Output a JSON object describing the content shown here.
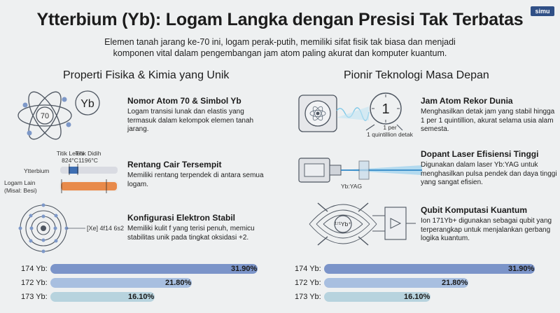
{
  "header": {
    "title": "Ytterbium (Yb): Logam Langka dengan Presisi Tak Terbatas",
    "logo": "simu",
    "subtitle": "Elemen tanah jarang ke-70 ini, logam perak-putih, memiliki sifat fisik tak biasa dan menjadi komponen vital dalam pengembangan jam atom paling akurat dan komputer kuantum."
  },
  "left": {
    "title": "Properti Fisika & Kimia yang Unik",
    "features": [
      {
        "title": "Nomor Atom 70 & Simbol Yb",
        "text": "Logam transisi lunak dan elastis yang termasuk dalam kelompok elemen tanah jarang."
      },
      {
        "title": "Rentang Cair Tersempit",
        "text": "Memiliki rentang terpendek di antara semua logam."
      },
      {
        "title": "Konfigurasi Elektron Stabil",
        "text": "Memiliki kulit f yang terisi penuh, memicu stabilitas unik pada tingkat oksidasi +2."
      }
    ],
    "atom": {
      "symbol": "Yb",
      "number": "70"
    },
    "range": {
      "melt_label": "Titik Leleh",
      "melt_value": "824°C",
      "boil_label": "Titik Didih",
      "boil_value": "1196°C",
      "row1": "Ytterbium",
      "row2_line1": "Logam Lain",
      "row2_line2": "(Misal: Besi)"
    },
    "config": "[Xe] 4f14 6s2",
    "bars": [
      {
        "label": "174 Yb:",
        "value": 31.9,
        "display": "31.90%",
        "color": "#7b94c9"
      },
      {
        "label": "172 Yb:",
        "value": 21.8,
        "display": "21.80%",
        "color": "#a8bfe0"
      },
      {
        "label": "173 Yb:",
        "value": 16.1,
        "display": "16.10%",
        "color": "#b7d3de"
      }
    ]
  },
  "right": {
    "title": "Pionir Teknologi Masa Depan",
    "features": [
      {
        "title": "Jam Atom Rekor Dunia",
        "text": "Menghasilkan detak jam yang stabil hingga 1 per 1 quintillion, akurat selama usia alam semesta."
      },
      {
        "title": "Dopant Laser Efisiensi Tinggi",
        "text": "Digunakan dalam laser Yb:YAG untuk menghasilkan pulsa pendek dan daya tinggi yang sangat efisien."
      },
      {
        "title": "Qubit Komputasi Kuantum",
        "text": "Ion 171Yb+ digunakan sebagai qubit yang terperangkap untuk menjalankan gerbang logika kuantum."
      }
    ],
    "clock": {
      "number": "1",
      "caption1": "1 per",
      "caption2": "1 quintillion detak"
    },
    "laser_label": "Yb:YAG",
    "ion_label": "¹⁷¹Yb⁺",
    "bars": [
      {
        "label": "174 Yb:",
        "value": 31.9,
        "display": "31.90%",
        "color": "#7b94c9"
      },
      {
        "label": "172 Yb:",
        "value": 21.8,
        "display": "21.80%",
        "color": "#a8bfe0"
      },
      {
        "label": "173 Yb:",
        "value": 16.1,
        "display": "16.10%",
        "color": "#b7d3de"
      }
    ]
  }
}
